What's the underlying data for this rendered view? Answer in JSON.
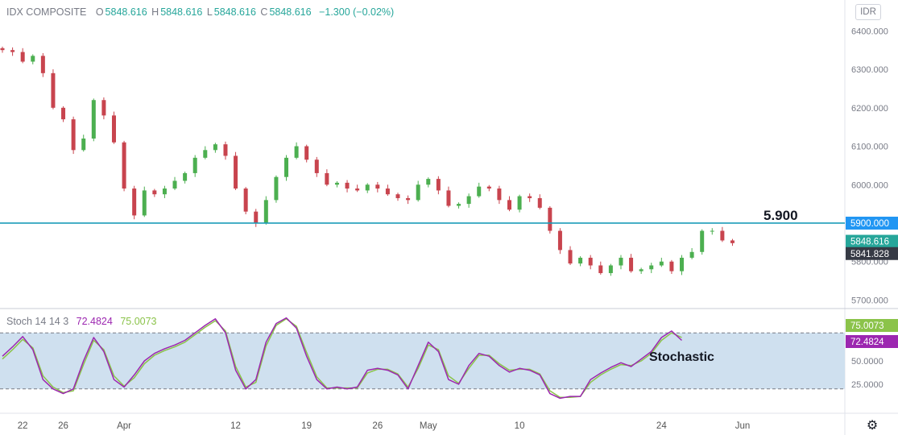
{
  "header": {
    "symbol": "IDX COMPOSITE",
    "o_label": "O",
    "o_value": "5848.616",
    "h_label": "H",
    "h_value": "5848.616",
    "l_label": "L",
    "l_value": "5848.616",
    "c_label": "C",
    "c_value": "5848.616",
    "change": "−1.300 (−0.02%)",
    "currency": "IDR"
  },
  "stoch_header": {
    "name": "Stoch 14 14 3",
    "k_value": "72.4824",
    "d_value": "75.0073"
  },
  "colors": {
    "up": "#26a69a",
    "up_candle": "#4caf50",
    "down": "#ef5350",
    "down_candle": "#c8444e",
    "resistance": "#1b9bb8",
    "k_line": "#9c27b0",
    "d_line": "#8bc34a",
    "stoch_band": "#cfe0ef",
    "price_tag": "#2196f3",
    "last_tag": "#26a69a",
    "close_tag": "#363a45"
  },
  "chart_data": [
    {
      "type": "candlestick",
      "title": "IDX COMPOSITE",
      "ylim": [
        5680,
        6430
      ],
      "yticks": [
        "6400.000",
        "6300.000",
        "6200.000",
        "6100.000",
        "6000.000",
        "5900.000",
        "5800.000",
        "5700.000"
      ],
      "ytick_values": [
        6400,
        6300,
        6200,
        6100,
        6000,
        5900,
        5800,
        5700
      ],
      "xticks": [
        "22",
        "26",
        "Apr",
        "12",
        "19",
        "26",
        "May",
        "10",
        "24",
        "Jun"
      ],
      "x_domain": [
        "Mar 20",
        "Jun 6"
      ],
      "xtick_dates": [
        "Mar 22",
        "Mar 26",
        "Apr 1",
        "Apr 12",
        "Apr 19",
        "Apr 26",
        "May 1",
        "May 10",
        "May 24",
        "Jun 1"
      ],
      "close_path": [
        [
          "Mar 20",
          6350
        ],
        [
          "Mar 21",
          6345
        ],
        [
          "Mar 22",
          6320
        ],
        [
          "Mar 23",
          6335
        ],
        [
          "Mar 24",
          6290
        ],
        [
          "Mar 25",
          6200
        ],
        [
          "Mar 26",
          6170
        ],
        [
          "Mar 27",
          6090
        ],
        [
          "Mar 28",
          6120
        ],
        [
          "Mar 29",
          6220
        ],
        [
          "Mar 30",
          6180
        ],
        [
          "Mar 31",
          6110
        ],
        [
          "Apr 1",
          5990
        ],
        [
          "Apr 2",
          5920
        ],
        [
          "Apr 3",
          5985
        ],
        [
          "Apr 4",
          5975
        ],
        [
          "Apr 5",
          5990
        ],
        [
          "Apr 6",
          6010
        ],
        [
          "Apr 7",
          6030
        ],
        [
          "Apr 8",
          6070
        ],
        [
          "Apr 9",
          6090
        ],
        [
          "Apr 10",
          6105
        ],
        [
          "Apr 11",
          6075
        ],
        [
          "Apr 12",
          5990
        ],
        [
          "Apr 13",
          5930
        ],
        [
          "Apr 14",
          5900
        ],
        [
          "Apr 15",
          5960
        ],
        [
          "Apr 16",
          6020
        ],
        [
          "Apr 17",
          6070
        ],
        [
          "Apr 18",
          6100
        ],
        [
          "Apr 19",
          6065
        ],
        [
          "Apr 20",
          6030
        ],
        [
          "Apr 21",
          6000
        ],
        [
          "Apr 22",
          6005
        ],
        [
          "Apr 23",
          5990
        ],
        [
          "Apr 24",
          5985
        ],
        [
          "Apr 25",
          6000
        ],
        [
          "Apr 26",
          5990
        ],
        [
          "Apr 27",
          5975
        ],
        [
          "Apr 28",
          5965
        ],
        [
          "Apr 29",
          5960
        ],
        [
          "Apr 30",
          6000
        ],
        [
          "May 1",
          6015
        ],
        [
          "May 2",
          5985
        ],
        [
          "May 3",
          5945
        ],
        [
          "May 4",
          5950
        ],
        [
          "May 5",
          5970
        ],
        [
          "May 6",
          5995
        ],
        [
          "May 7",
          5990
        ],
        [
          "May 8",
          5960
        ],
        [
          "May 9",
          5935
        ],
        [
          "May 10",
          5970
        ],
        [
          "May 11",
          5965
        ],
        [
          "May 12",
          5940
        ],
        [
          "May 13",
          5880
        ],
        [
          "May 14",
          5830
        ],
        [
          "May 15",
          5795
        ],
        [
          "May 16",
          5810
        ],
        [
          "May 17",
          5790
        ],
        [
          "May 18",
          5770
        ],
        [
          "May 19",
          5790
        ],
        [
          "May 20",
          5810
        ],
        [
          "May 21",
          5775
        ],
        [
          "May 22",
          5780
        ],
        [
          "May 23",
          5790
        ],
        [
          "May 24",
          5800
        ],
        [
          "May 25",
          5775
        ],
        [
          "May 26",
          5810
        ],
        [
          "May 27",
          5825
        ],
        [
          "May 28",
          5880
        ],
        [
          "May 29",
          5880
        ],
        [
          "May 30",
          5855
        ],
        [
          "May 31",
          5848
        ]
      ],
      "resistance_level": 5900,
      "annotations": [
        {
          "text": "5.900"
        }
      ],
      "price_labels": [
        {
          "text": "5900.000",
          "value": 5900,
          "role": "resistance"
        },
        {
          "text": "5848.616",
          "value": 5848.616,
          "role": "last"
        },
        {
          "text": "5841.828",
          "value": 5841.828,
          "role": "close"
        }
      ]
    },
    {
      "type": "line",
      "title": "Stoch 14 14 3",
      "ylim": [
        0,
        100
      ],
      "yticks": [
        "50.0000",
        "25.0000"
      ],
      "ytick_values": [
        50,
        25
      ],
      "bands": [
        20,
        80
      ],
      "series": [
        {
          "name": "%K",
          "points": [
            [
              "Mar 20",
              55
            ],
            [
              "Mar 21",
              65
            ],
            [
              "Mar 22",
              76
            ],
            [
              "Mar 23",
              62
            ],
            [
              "Mar 24",
              30
            ],
            [
              "Mar 25",
              20
            ],
            [
              "Mar 26",
              15
            ],
            [
              "Mar 27",
              20
            ],
            [
              "Mar 28",
              50
            ],
            [
              "Mar 29",
              75
            ],
            [
              "Mar 30",
              60
            ],
            [
              "Mar 31",
              30
            ],
            [
              "Apr 1",
              22
            ],
            [
              "Apr 2",
              35
            ],
            [
              "Apr 3",
              50
            ],
            [
              "Apr 4",
              58
            ],
            [
              "Apr 5",
              63
            ],
            [
              "Apr 6",
              67
            ],
            [
              "Apr 7",
              72
            ],
            [
              "Apr 8",
              80
            ],
            [
              "Apr 9",
              88
            ],
            [
              "Apr 10",
              95
            ],
            [
              "Apr 11",
              80
            ],
            [
              "Apr 12",
              40
            ],
            [
              "Apr 13",
              20
            ],
            [
              "Apr 14",
              30
            ],
            [
              "Apr 15",
              70
            ],
            [
              "Apr 16",
              90
            ],
            [
              "Apr 17",
              96
            ],
            [
              "Apr 18",
              85
            ],
            [
              "Apr 19",
              55
            ],
            [
              "Apr 20",
              30
            ],
            [
              "Apr 21",
              20
            ],
            [
              "Apr 22",
              22
            ],
            [
              "Apr 23",
              20
            ],
            [
              "Apr 24",
              22
            ],
            [
              "Apr 25",
              40
            ],
            [
              "Apr 26",
              42
            ],
            [
              "Apr 27",
              40
            ],
            [
              "Apr 28",
              35
            ],
            [
              "Apr 29",
              20
            ],
            [
              "Apr 30",
              45
            ],
            [
              "May 1",
              70
            ],
            [
              "May 2",
              60
            ],
            [
              "May 3",
              30
            ],
            [
              "May 4",
              25
            ],
            [
              "May 5",
              45
            ],
            [
              "May 6",
              58
            ],
            [
              "May 7",
              55
            ],
            [
              "May 8",
              45
            ],
            [
              "May 9",
              38
            ],
            [
              "May 10",
              42
            ],
            [
              "May 11",
              40
            ],
            [
              "May 12",
              35
            ],
            [
              "May 13",
              15
            ],
            [
              "May 14",
              10
            ],
            [
              "May 15",
              12
            ],
            [
              "May 16",
              12
            ],
            [
              "May 17",
              30
            ],
            [
              "May 18",
              37
            ],
            [
              "May 19",
              43
            ],
            [
              "May 20",
              48
            ],
            [
              "May 21",
              44
            ],
            [
              "May 22",
              52
            ],
            [
              "May 23",
              60
            ],
            [
              "May 24",
              75
            ],
            [
              "May 25",
              82
            ],
            [
              "May 26",
              72
            ]
          ]
        },
        {
          "name": "%D",
          "points": [
            [
              "Mar 20",
              52
            ],
            [
              "Mar 21",
              62
            ],
            [
              "Mar 22",
              73
            ],
            [
              "Mar 23",
              64
            ],
            [
              "Mar 24",
              34
            ],
            [
              "Mar 25",
              22
            ],
            [
              "Mar 26",
              16
            ],
            [
              "Mar 27",
              18
            ],
            [
              "Mar 28",
              46
            ],
            [
              "Mar 29",
              72
            ],
            [
              "Mar 30",
              62
            ],
            [
              "Mar 31",
              34
            ],
            [
              "Apr 1",
              23
            ],
            [
              "Apr 2",
              32
            ],
            [
              "Apr 3",
              47
            ],
            [
              "Apr 4",
              56
            ],
            [
              "Apr 5",
              61
            ],
            [
              "Apr 6",
              65
            ],
            [
              "Apr 7",
              70
            ],
            [
              "Apr 8",
              78
            ],
            [
              "Apr 9",
              86
            ],
            [
              "Apr 10",
              93
            ],
            [
              "Apr 11",
              82
            ],
            [
              "Apr 12",
              44
            ],
            [
              "Apr 13",
              22
            ],
            [
              "Apr 14",
              27
            ],
            [
              "Apr 15",
              66
            ],
            [
              "Apr 16",
              88
            ],
            [
              "Apr 17",
              95
            ],
            [
              "Apr 18",
              87
            ],
            [
              "Apr 19",
              59
            ],
            [
              "Apr 20",
              33
            ],
            [
              "Apr 21",
              21
            ],
            [
              "Apr 22",
              21
            ],
            [
              "Apr 23",
              21
            ],
            [
              "Apr 24",
              21
            ],
            [
              "Apr 25",
              37
            ],
            [
              "Apr 26",
              41
            ],
            [
              "Apr 27",
              41
            ],
            [
              "Apr 28",
              36
            ],
            [
              "Apr 29",
              22
            ],
            [
              "Apr 30",
              42
            ],
            [
              "May 1",
              67
            ],
            [
              "May 2",
              62
            ],
            [
              "May 3",
              34
            ],
            [
              "May 4",
              26
            ],
            [
              "May 5",
              42
            ],
            [
              "May 6",
              56
            ],
            [
              "May 7",
              56
            ],
            [
              "May 8",
              47
            ],
            [
              "May 9",
              40
            ],
            [
              "May 10",
              41
            ],
            [
              "May 11",
              41
            ],
            [
              "May 12",
              36
            ],
            [
              "May 13",
              18
            ],
            [
              "May 14",
              11
            ],
            [
              "May 15",
              11
            ],
            [
              "May 16",
              12
            ],
            [
              "May 17",
              27
            ],
            [
              "May 18",
              35
            ],
            [
              "May 19",
              41
            ],
            [
              "May 20",
              46
            ],
            [
              "May 21",
              45
            ],
            [
              "May 22",
              50
            ],
            [
              "May 23",
              58
            ],
            [
              "May 24",
              72
            ],
            [
              "May 25",
              80
            ],
            [
              "May 26",
              75
            ]
          ]
        }
      ],
      "annotations": [
        {
          "text": "Stochastic"
        }
      ],
      "value_labels": [
        {
          "text": "75.0073",
          "value": 75.0073,
          "series": "%D"
        },
        {
          "text": "72.4824",
          "value": 72.4824,
          "series": "%K"
        }
      ]
    }
  ]
}
